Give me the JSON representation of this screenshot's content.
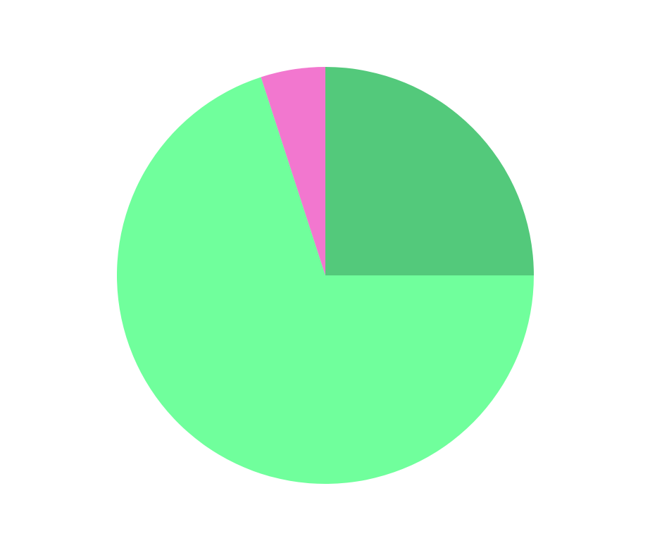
{
  "chart_data": {
    "type": "pie",
    "start_angle": "top",
    "direction": "clockwise",
    "slices": [
      {
        "value": 25,
        "color": "#53c97b"
      },
      {
        "value": 70,
        "color": "#70ff9c"
      },
      {
        "value": 5,
        "color": "#f277cf"
      }
    ]
  }
}
